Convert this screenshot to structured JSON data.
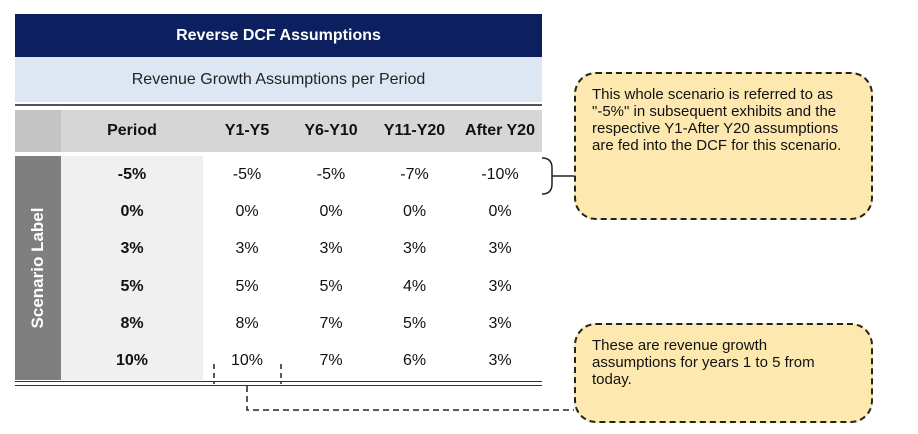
{
  "table": {
    "title": "Reverse DCF Assumptions",
    "subtitle": "Revenue Growth Assumptions per Period",
    "header": {
      "period": "Period",
      "y1": "Y1-Y5",
      "y6": "Y6-Y10",
      "y11": "Y11-Y20",
      "y20": "After Y20"
    },
    "side_label": "Scenario Label",
    "rows": [
      {
        "label": "-5%",
        "y1": "-5%",
        "y6": "-5%",
        "y11": "-7%",
        "y20": "-10%"
      },
      {
        "label": "0%",
        "y1": "0%",
        "y6": "0%",
        "y11": "0%",
        "y20": "0%"
      },
      {
        "label": "3%",
        "y1": "3%",
        "y6": "3%",
        "y11": "3%",
        "y20": "3%"
      },
      {
        "label": "5%",
        "y1": "5%",
        "y6": "5%",
        "y11": "4%",
        "y20": "3%"
      },
      {
        "label": "8%",
        "y1": "8%",
        "y6": "7%",
        "y11": "5%",
        "y20": "3%"
      },
      {
        "label": "10%",
        "y1": "10%",
        "y6": "7%",
        "y11": "6%",
        "y20": "3%"
      }
    ]
  },
  "notes": {
    "scenario": "This whole scenario is referred to as \"-5%\" in subsequent exhibits and the respective Y1-After Y20 assumptions are fed into the DCF for this scenario.",
    "growth": "These are revenue growth assumptions for years 1 to 5 from today."
  }
}
